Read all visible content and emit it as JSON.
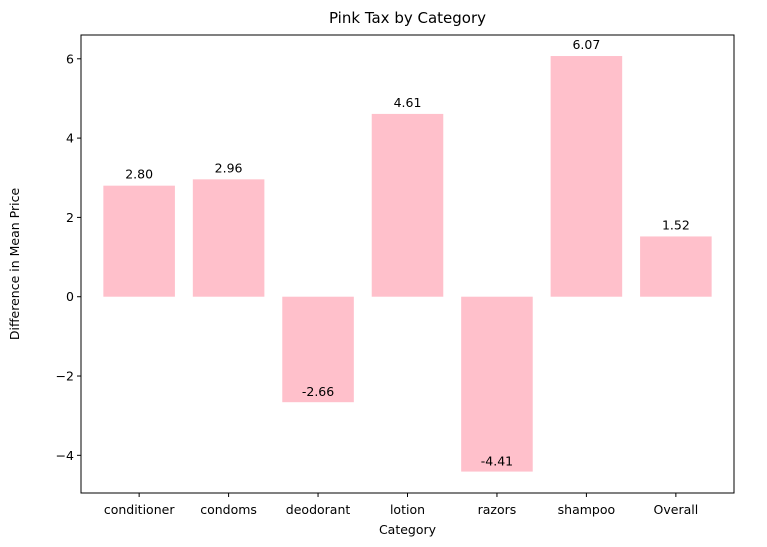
{
  "chart_data": {
    "type": "bar",
    "title": "Pink Tax by Category",
    "xlabel": "Category",
    "ylabel": "Difference in Mean Price",
    "categories": [
      "conditioner",
      "condoms",
      "deodorant",
      "lotion",
      "razors",
      "shampoo",
      "Overall"
    ],
    "values": [
      2.8,
      2.96,
      -2.66,
      4.61,
      -4.41,
      6.07,
      1.52
    ],
    "value_labels": [
      "2.80",
      "2.96",
      "-2.66",
      "4.61",
      "-4.41",
      "6.07",
      "1.52"
    ],
    "ylim": [
      -4.95,
      6.6
    ],
    "yticks": [
      -4,
      -2,
      0,
      2,
      4,
      6
    ],
    "ytick_labels": [
      "−4",
      "−2",
      "0",
      "2",
      "4",
      "6"
    ],
    "bar_color": "#ffc0cb",
    "grid": false,
    "legend": "none"
  }
}
